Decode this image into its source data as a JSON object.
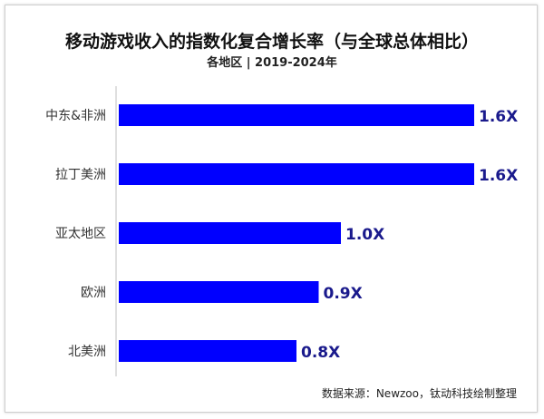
{
  "chart_data": {
    "type": "bar",
    "orientation": "horizontal",
    "title": "移动游戏收入的指数化复合增长率（与全球总体相比）",
    "subtitle": "各地区 | 2019-2024年",
    "categories": [
      "中东&非洲",
      "拉丁美洲",
      "亚太地区",
      "欧洲",
      "北美洲"
    ],
    "values": [
      1.6,
      1.6,
      1.0,
      0.9,
      0.8
    ],
    "data_labels": [
      "1.6X",
      "1.6X",
      "1.0X",
      "0.9X",
      "0.8X"
    ],
    "xlim": [
      0,
      1.6
    ],
    "bar_color": "#0000ff",
    "label_color": "#1a1a8c",
    "grid": false,
    "legend": "none"
  },
  "source": "数据来源：Newzoo，钛动科技绘制整理"
}
